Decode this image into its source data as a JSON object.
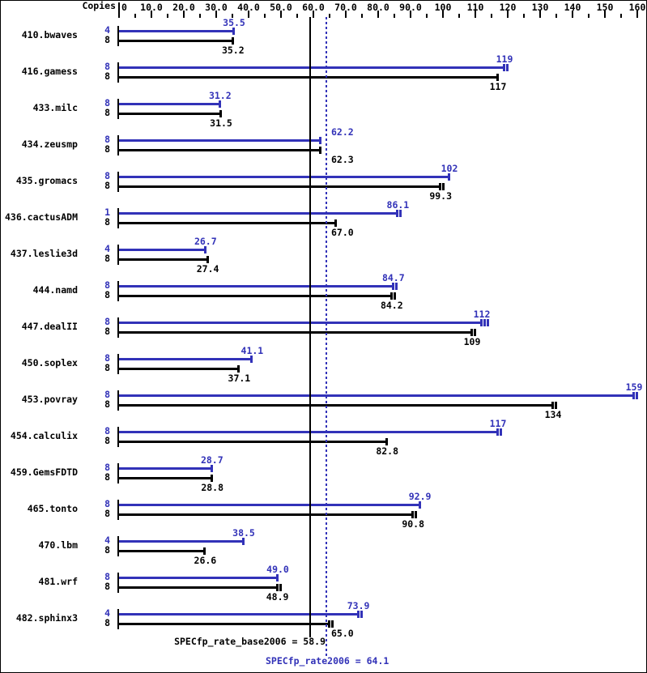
{
  "colors": {
    "peak": "#3232b8",
    "base": "#000000",
    "background": "#ffffff"
  },
  "chart_data": {
    "type": "bar",
    "orientation": "horizontal",
    "xlabel": "Copies",
    "xlim": [
      0,
      160
    ],
    "grid": false,
    "zero_label": "0",
    "minor_tick_step": 5,
    "major_tick_step": 10,
    "x_tick_labels": [
      {
        "u": 10,
        "text": "10.0"
      },
      {
        "u": 20,
        "text": "20.0"
      },
      {
        "u": 30,
        "text": "30.0"
      },
      {
        "u": 40,
        "text": "40.0"
      },
      {
        "u": 50,
        "text": "50.0"
      },
      {
        "u": 60,
        "text": "60.0"
      },
      {
        "u": 70,
        "text": "70.0"
      },
      {
        "u": 80,
        "text": "80.0"
      },
      {
        "u": 90,
        "text": "90.0"
      },
      {
        "u": 100,
        "text": "100"
      },
      {
        "u": 110,
        "text": "110"
      },
      {
        "u": 120,
        "text": "120"
      },
      {
        "u": 130,
        "text": "130"
      },
      {
        "u": 140,
        "text": "140"
      },
      {
        "u": 150,
        "text": "150"
      },
      {
        "u": 160,
        "text": "160"
      }
    ],
    "categories": [
      "410.bwaves",
      "416.gamess",
      "433.milc",
      "434.zeusmp",
      "435.gromacs",
      "436.cactusADM",
      "437.leslie3d",
      "444.namd",
      "447.dealII",
      "450.soplex",
      "453.povray",
      "454.calculix",
      "459.GemsFDTD",
      "465.tonto",
      "470.lbm",
      "481.wrf",
      "482.sphinx3"
    ],
    "series": [
      {
        "name": "peak",
        "color": "#3232b8",
        "copies": [
          "4",
          "8",
          "8",
          "8",
          "8",
          "1",
          "4",
          "8",
          "8",
          "8",
          "8",
          "8",
          "8",
          "8",
          "4",
          "8",
          "4"
        ],
        "values": [
          35.5,
          119,
          31.2,
          62.2,
          102,
          86.1,
          26.7,
          84.7,
          112,
          41.1,
          159,
          117,
          28.7,
          92.9,
          38.5,
          49.0,
          73.9
        ],
        "labels": [
          "35.5",
          "119",
          "31.2",
          "62.2",
          "102",
          "86.1",
          "26.7",
          "84.7",
          "112",
          "41.1",
          "159",
          "117",
          "28.7",
          "92.9",
          "38.5",
          "49.0",
          "73.9"
        ],
        "end_marks": [
          1,
          2,
          1,
          1,
          1,
          2,
          1,
          2,
          3,
          1,
          2,
          2,
          1,
          1,
          1,
          1,
          2
        ]
      },
      {
        "name": "base",
        "color": "#000000",
        "copies": [
          "8",
          "8",
          "8",
          "8",
          "8",
          "8",
          "8",
          "8",
          "8",
          "8",
          "8",
          "8",
          "8",
          "8",
          "8",
          "8",
          "8"
        ],
        "values": [
          35.2,
          117,
          31.5,
          62.3,
          99.3,
          67.0,
          27.4,
          84.2,
          109,
          37.1,
          134,
          82.8,
          28.8,
          90.8,
          26.6,
          48.9,
          65.0
        ],
        "labels": [
          "35.2",
          "117",
          "31.5",
          "62.3",
          "99.3",
          "67.0",
          "27.4",
          "84.2",
          "109",
          "37.1",
          "134",
          "82.8",
          "28.8",
          "90.8",
          "26.6",
          "48.9",
          "65.0"
        ],
        "end_marks": [
          1,
          1,
          1,
          1,
          2,
          1,
          1,
          2,
          2,
          1,
          2,
          1,
          1,
          2,
          1,
          2,
          2
        ]
      }
    ],
    "reference_lines": [
      {
        "name": "base_mean",
        "label": "SPECfp_rate_base2006 = 58.9",
        "value": 58.9,
        "style": "solid",
        "color": "#000000"
      },
      {
        "name": "peak_mean",
        "label": "SPECfp_rate2006 = 64.1",
        "value": 64.1,
        "style": "dotted",
        "color": "#3232b8"
      }
    ]
  }
}
